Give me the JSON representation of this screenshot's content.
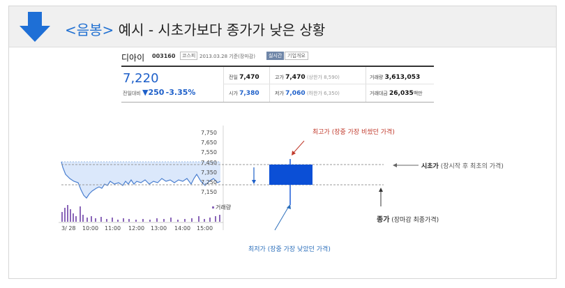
{
  "header": {
    "title_highlight": "<음봉>",
    "title_rest": " 예시  - 시초가보다 종가가 낮은 상황"
  },
  "stock": {
    "name": "디아이",
    "code": "003160",
    "market": "코스피",
    "date": "2013.03.28 기준(장마감)",
    "btn_realtime": "실시간",
    "btn_company": "기업개요",
    "price": "7,220",
    "change_label": "전일대비",
    "change_arrow": "▼",
    "change_value": "250",
    "change_pct": "-3.35%",
    "cells": {
      "prev_label": "전일",
      "prev_value": "7,470",
      "high_label": "고가",
      "high_value": "7,470",
      "high_sub": "(상한가 8,590)",
      "volume_label": "거래량",
      "volume_value": "3,613,053",
      "open_label": "시가",
      "open_value": "7,380",
      "low_label": "저가",
      "low_value": "7,060",
      "low_sub": "(하한가 6,350)",
      "amount_label": "거래대금",
      "amount_value": "26,035",
      "amount_unit": "백만"
    }
  },
  "chart": {
    "y_ticks": [
      "7,750",
      "7,650",
      "7,550",
      "7,450",
      "7,350",
      "7,250",
      "7,150"
    ],
    "x_ticks": [
      "3/ 28",
      "10:00",
      "11:00",
      "12:00",
      "13:00",
      "14:00",
      "15:00"
    ],
    "volume_legend": "거래량",
    "colors": {
      "candle": "#0b4fd6",
      "area": "#dbe8fb",
      "line": "#4a7fd0",
      "volume": "#8a66b8"
    }
  },
  "annotations": {
    "high": "최고가 (장중 가장 비쌌던 가격)",
    "open_bold": "시초가",
    "open_rest": " (장시작 후 최초의 가격)",
    "close_bold": "종가",
    "close_rest": " (장마감 최종가격)",
    "low": "최저가 (장중 가장 낮았던 가격)"
  }
}
